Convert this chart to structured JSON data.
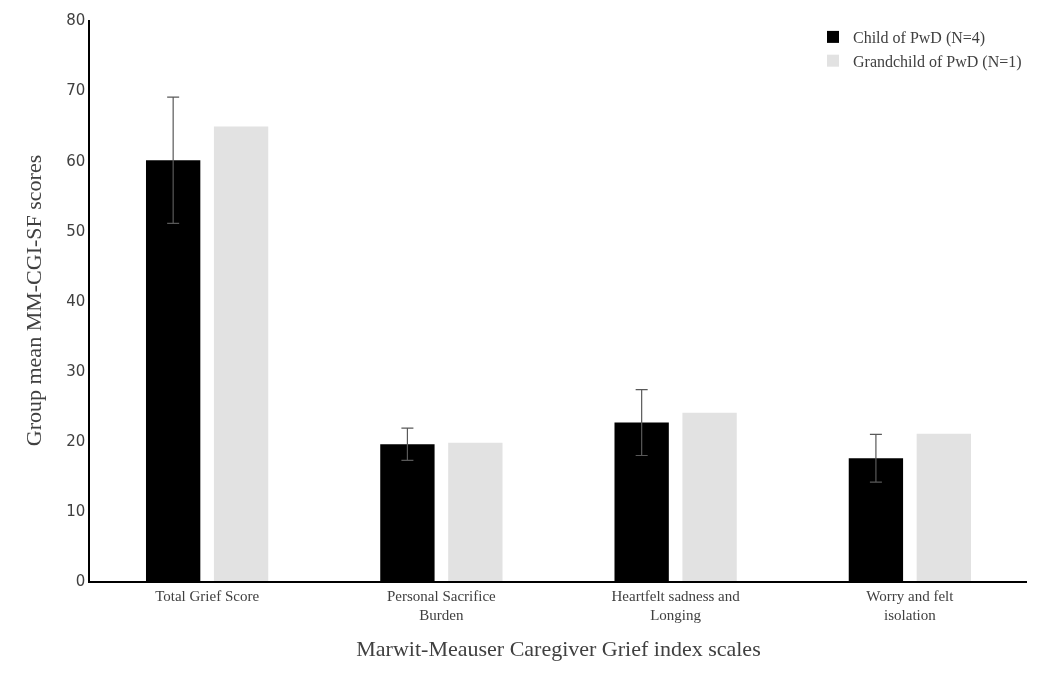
{
  "chart_data": {
    "type": "bar",
    "xlabel": "Marwit-Meauser Caregiver Grief index scales",
    "ylabel": "Group mean MM-CGI-SF scores",
    "categories": [
      "Total Grief Score",
      "Personal Sacrifice Burden",
      "Heartfelt sadness and Longing",
      "Worry and felt isolation"
    ],
    "series": [
      {
        "name": "Child of PwD (N=4)",
        "color": "#000000",
        "values": [
          60,
          19.5,
          22.6,
          17.5
        ],
        "errors": [
          9,
          2.3,
          4.7,
          3.4
        ]
      },
      {
        "name": "Grandchild of PwD (N=1)",
        "color": "#e2e2e2",
        "values": [
          64.8,
          19.7,
          24,
          21
        ]
      }
    ],
    "ylim": [
      0,
      80
    ],
    "yticks": [
      0,
      10,
      20,
      30,
      40,
      50,
      60,
      70,
      80
    ],
    "grid": false,
    "legend": "top right"
  }
}
